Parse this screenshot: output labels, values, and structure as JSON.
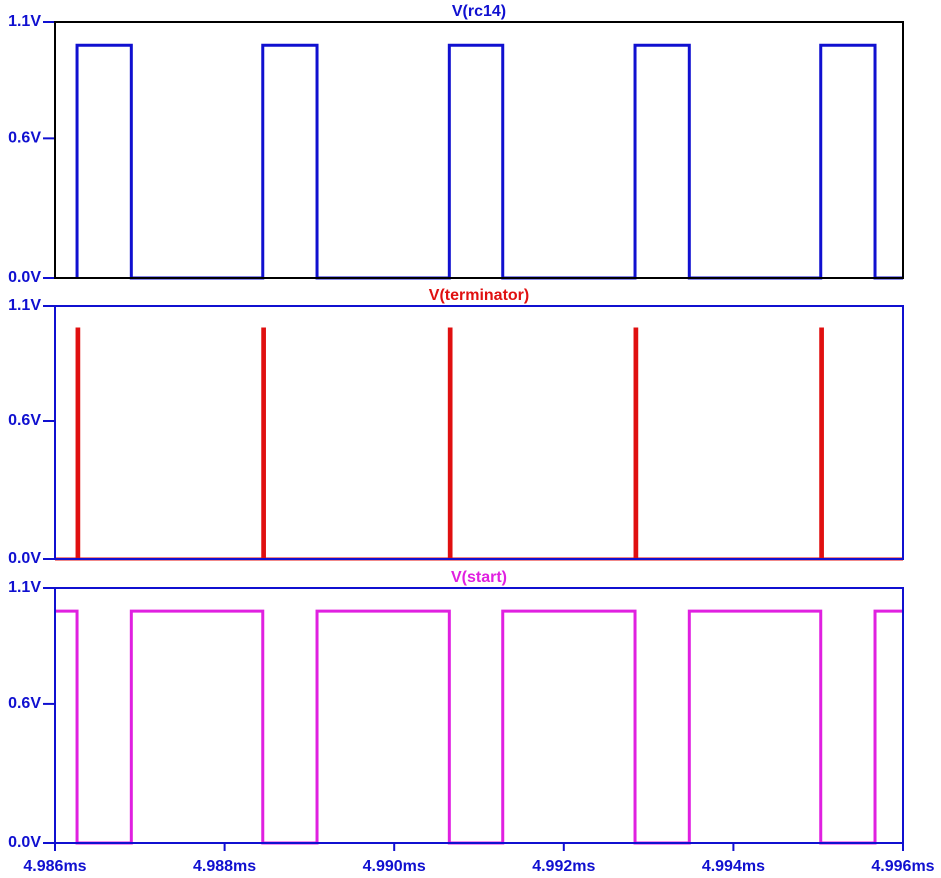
{
  "chart_data": [
    {
      "type": "line",
      "title": "V(rc14)",
      "color": "#1010d0",
      "x": [
        4.98626,
        4.98626,
        4.9869,
        4.9869,
        4.98845,
        4.98845,
        4.98909,
        4.98909,
        4.99065,
        4.99065,
        4.99128,
        4.99128,
        4.99284,
        4.99284,
        4.99348,
        4.99348,
        4.99503,
        4.99503,
        4.99567,
        4.99567,
        4.996
      ],
      "values": [
        0,
        1,
        1,
        0,
        0,
        1,
        1,
        0,
        0,
        1,
        1,
        0,
        0,
        1,
        1,
        0,
        0,
        1,
        1,
        0,
        0
      ],
      "xlim": [
        4.986,
        4.996
      ],
      "ylim": [
        0,
        1.1
      ],
      "yticks": [
        {
          "value": 0,
          "label": "0.0V"
        },
        {
          "value": 0.6,
          "label": "0.6V"
        },
        {
          "value": 1.1,
          "label": "1.1V"
        }
      ]
    },
    {
      "type": "line",
      "title": "V(terminator)",
      "color": "#e01010",
      "x": [
        4.986,
        4.98626,
        4.98626,
        4.98628,
        4.98628,
        4.98845,
        4.98845,
        4.98847,
        4.98847,
        4.99065,
        4.99065,
        4.99067,
        4.99067,
        4.99284,
        4.99284,
        4.99286,
        4.99286,
        4.99503,
        4.99503,
        4.99505,
        4.99505,
        4.996
      ],
      "values": [
        0,
        0,
        1,
        1,
        0,
        0,
        1,
        1,
        0,
        0,
        1,
        1,
        0,
        0,
        1,
        1,
        0,
        0,
        1,
        1,
        0,
        0
      ],
      "xlim": [
        4.986,
        4.996
      ],
      "ylim": [
        0,
        1.1
      ],
      "yticks": [
        {
          "value": 0,
          "label": "0.0V"
        },
        {
          "value": 0.6,
          "label": "0.6V"
        },
        {
          "value": 1.1,
          "label": "1.1V"
        }
      ]
    },
    {
      "type": "line",
      "title": "V(start)",
      "color": "#e020e0",
      "x": [
        4.986,
        4.98626,
        4.98626,
        4.9869,
        4.9869,
        4.98845,
        4.98845,
        4.98909,
        4.98909,
        4.99065,
        4.99065,
        4.99128,
        4.99128,
        4.99284,
        4.99284,
        4.99348,
        4.99348,
        4.99503,
        4.99503,
        4.99567,
        4.99567,
        4.996
      ],
      "values": [
        1,
        1,
        0,
        0,
        1,
        1,
        0,
        0,
        1,
        1,
        0,
        0,
        1,
        1,
        0,
        0,
        1,
        1,
        0,
        0,
        1,
        1
      ],
      "xlim": [
        4.986,
        4.996
      ],
      "ylim": [
        0,
        1.1
      ],
      "yticks": [
        {
          "value": 0,
          "label": "0.0V"
        },
        {
          "value": 0.6,
          "label": "0.6V"
        },
        {
          "value": 1.1,
          "label": "1.1V"
        }
      ],
      "xticks": [
        {
          "value": 4.986,
          "label": "4.986ms"
        },
        {
          "value": 4.988,
          "label": "4.988ms"
        },
        {
          "value": 4.99,
          "label": "4.990ms"
        },
        {
          "value": 4.992,
          "label": "4.992ms"
        },
        {
          "value": 4.994,
          "label": "4.994ms"
        },
        {
          "value": 4.996,
          "label": "4.996ms"
        }
      ]
    }
  ]
}
